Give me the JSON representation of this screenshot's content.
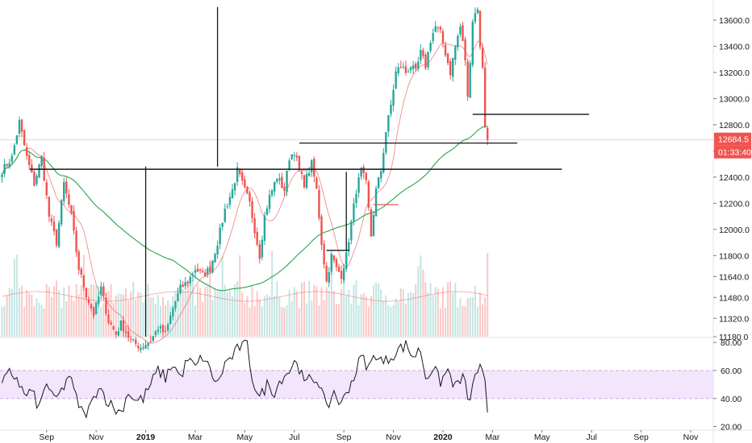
{
  "chart_data": {
    "type": "candlestick",
    "main_pane": {
      "y_ticks": [
        11180,
        11320,
        11480,
        11640,
        11800,
        12000,
        12200,
        12400,
        12600,
        12800,
        13000,
        13200,
        13400,
        13600
      ],
      "y_tick_labels": [
        "11180.0",
        "11320.0",
        "11480.0",
        "11640.0",
        "11800.0",
        "12000.0",
        "12200.0",
        "12400.0",
        "12600.0",
        "12800.0",
        "13000.0",
        "13200.0",
        "13400.0",
        "13600.0"
      ],
      "ylim": [
        11180,
        13680
      ],
      "last_price": 12684.5,
      "last_price_label": "12684.5",
      "countdown_label": "01:33:40",
      "colors": {
        "up": "#26a69a",
        "down": "#ef5350",
        "ma_long": "#26a64a",
        "ma_short": "#ef5350",
        "price_tag": "#ef5350",
        "level_line": "#131722"
      },
      "x_tick_labels": [
        "Sep",
        "Nov",
        "2019",
        "Mar",
        "May",
        "Jul",
        "Sep",
        "Nov",
        "2020",
        "Mar",
        "May",
        "Jul",
        "Sep",
        "Nov"
      ],
      "x_tick_index": [
        18,
        38,
        58,
        78,
        98,
        118,
        138,
        158,
        178,
        198,
        218,
        238,
        258,
        278
      ],
      "x_bold_labels": [
        "2019",
        "2020"
      ],
      "keypoints": [
        [
          0,
          12450
        ],
        [
          4,
          12550
        ],
        [
          7,
          12820
        ],
        [
          10,
          12550
        ],
        [
          13,
          12350
        ],
        [
          16,
          12550
        ],
        [
          19,
          12100
        ],
        [
          22,
          11900
        ],
        [
          25,
          12350
        ],
        [
          28,
          12100
        ],
        [
          31,
          11700
        ],
        [
          34,
          11500
        ],
        [
          37,
          11350
        ],
        [
          40,
          11550
        ],
        [
          43,
          11300
        ],
        [
          46,
          11200
        ],
        [
          48,
          11280
        ],
        [
          52,
          11150
        ],
        [
          56,
          11100
        ],
        [
          60,
          11150
        ],
        [
          63,
          11250
        ],
        [
          66,
          11200
        ],
        [
          69,
          11400
        ],
        [
          72,
          11550
        ],
        [
          75,
          11600
        ],
        [
          78,
          11700
        ],
        [
          81,
          11650
        ],
        [
          84,
          11700
        ],
        [
          87,
          11900
        ],
        [
          90,
          12150
        ],
        [
          93,
          12300
        ],
        [
          95,
          12450
        ],
        [
          98,
          12300
        ],
        [
          100,
          12200
        ],
        [
          102,
          12000
        ],
        [
          104,
          11800
        ],
        [
          106,
          12100
        ],
        [
          108,
          12250
        ],
        [
          111,
          12400
        ],
        [
          114,
          12300
        ],
        [
          116,
          12550
        ],
        [
          118,
          12600
        ],
        [
          120,
          12450
        ],
        [
          122,
          12350
        ],
        [
          125,
          12500
        ],
        [
          127,
          12300
        ],
        [
          129,
          11900
        ],
        [
          131,
          11600
        ],
        [
          133,
          11800
        ],
        [
          135,
          11700
        ],
        [
          137,
          11650
        ],
        [
          139,
          11800
        ],
        [
          141,
          12050
        ],
        [
          143,
          12300
        ],
        [
          145,
          12450
        ],
        [
          147,
          12350
        ],
        [
          149,
          11950
        ],
        [
          151,
          12300
        ],
        [
          153,
          12450
        ],
        [
          155,
          12750
        ],
        [
          157,
          12950
        ],
        [
          159,
          13200
        ],
        [
          161,
          13250
        ],
        [
          163,
          13200
        ],
        [
          165,
          13250
        ],
        [
          167,
          13200
        ],
        [
          169,
          13350
        ],
        [
          171,
          13250
        ],
        [
          173,
          13450
        ],
        [
          175,
          13550
        ],
        [
          177,
          13500
        ],
        [
          179,
          13350
        ],
        [
          181,
          13200
        ],
        [
          183,
          13400
        ],
        [
          185,
          13550
        ],
        [
          187,
          13300
        ],
        [
          188,
          13000
        ],
        [
          190,
          13600
        ],
        [
          192,
          13700
        ],
        [
          193,
          13380
        ],
        [
          194,
          13250
        ],
        [
          195,
          12800
        ],
        [
          196,
          12684
        ]
      ],
      "levels": [
        {
          "y": 12460,
          "i0": 11,
          "i1": 226
        },
        {
          "y": 12660,
          "i0": 120,
          "i1": 208
        },
        {
          "y": 12880,
          "i0": 190,
          "i1": 237
        },
        {
          "y": 11840,
          "i0": 131,
          "i1": 140
        },
        {
          "y": 12190,
          "i0": 150,
          "i1": 160
        }
      ],
      "vlines": [
        {
          "i": 87,
          "y0": 13700,
          "y1": 12480
        },
        {
          "i": 58,
          "y0": 12480,
          "y1": 11180
        },
        {
          "i": 139,
          "y0": 12440,
          "y1": 11840
        }
      ]
    },
    "volume": {
      "last_spike_index": 196
    },
    "rsi_pane": {
      "y_ticks": [
        20,
        40,
        60,
        80
      ],
      "y_tick_labels": [
        "20.00",
        "40.00",
        "60.00",
        "80.00"
      ],
      "ylim": [
        18,
        83
      ],
      "band": [
        40,
        60
      ],
      "colors": {
        "band_fill": "#f3e5fc",
        "band_border": "#c9a7e8",
        "line": "#131722"
      },
      "keypoints": [
        [
          0,
          50
        ],
        [
          3,
          58
        ],
        [
          6,
          55
        ],
        [
          9,
          42
        ],
        [
          12,
          45
        ],
        [
          15,
          33
        ],
        [
          18,
          52
        ],
        [
          21,
          38
        ],
        [
          24,
          45
        ],
        [
          27,
          57
        ],
        [
          30,
          40
        ],
        [
          33,
          28
        ],
        [
          36,
          35
        ],
        [
          39,
          50
        ],
        [
          42,
          40
        ],
        [
          45,
          33
        ],
        [
          48,
          30
        ],
        [
          51,
          45
        ],
        [
          54,
          38
        ],
        [
          57,
          40
        ],
        [
          60,
          50
        ],
        [
          63,
          60
        ],
        [
          66,
          55
        ],
        [
          69,
          65
        ],
        [
          72,
          55
        ],
        [
          75,
          68
        ],
        [
          78,
          62
        ],
        [
          81,
          70
        ],
        [
          84,
          60
        ],
        [
          87,
          50
        ],
        [
          90,
          65
        ],
        [
          93,
          70
        ],
        [
          96,
          77
        ],
        [
          99,
          78
        ],
        [
          101,
          55
        ],
        [
          104,
          40
        ],
        [
          107,
          50
        ],
        [
          110,
          45
        ],
        [
          113,
          55
        ],
        [
          116,
          60
        ],
        [
          119,
          68
        ],
        [
          122,
          50
        ],
        [
          125,
          55
        ],
        [
          128,
          52
        ],
        [
          131,
          32
        ],
        [
          134,
          45
        ],
        [
          137,
          35
        ],
        [
          139,
          45
        ],
        [
          142,
          55
        ],
        [
          145,
          70
        ],
        [
          148,
          62
        ],
        [
          151,
          72
        ],
        [
          154,
          65
        ],
        [
          157,
          70
        ],
        [
          160,
          75
        ],
        [
          163,
          78
        ],
        [
          166,
          70
        ],
        [
          169,
          75
        ],
        [
          171,
          55
        ],
        [
          174,
          62
        ],
        [
          177,
          52
        ],
        [
          180,
          60
        ],
        [
          183,
          48
        ],
        [
          186,
          55
        ],
        [
          189,
          37
        ],
        [
          191,
          58
        ],
        [
          193,
          62
        ],
        [
          195,
          50
        ],
        [
          196,
          30
        ]
      ]
    }
  }
}
